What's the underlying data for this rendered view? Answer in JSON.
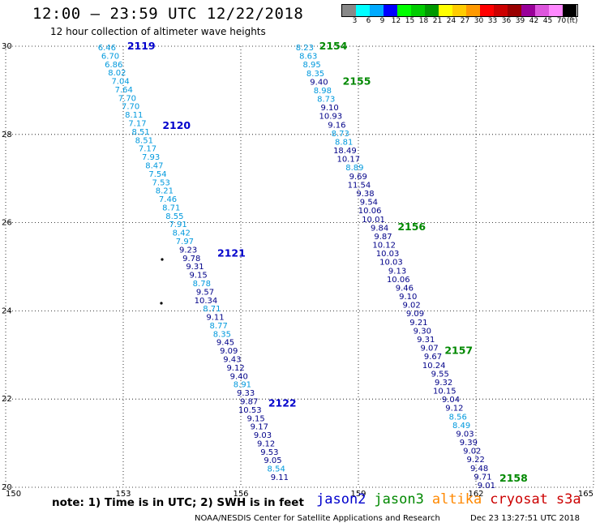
{
  "title": "12:00 – 23:59 UTC 12/22/2018",
  "subtitle": "12 hour collection of altimeter wave heights",
  "scale": {
    "labels": [
      "3",
      "6",
      "9",
      "12",
      "15",
      "18",
      "21",
      "24",
      "27",
      "30",
      "33",
      "36",
      "39",
      "42",
      "45",
      "70"
    ],
    "unit": "(ft)",
    "colors": [
      "#888888",
      "#00ffff",
      "#00aaff",
      "#0000ff",
      "#00ff00",
      "#00cc00",
      "#009900",
      "#ffff00",
      "#ffcc00",
      "#ff9900",
      "#ff0000",
      "#cc0000",
      "#990000",
      "#990099",
      "#dd55dd",
      "#ff88ff",
      "#000000"
    ]
  },
  "axes": {
    "x_ticks": [
      "150",
      "153",
      "156",
      "159",
      "162",
      "165"
    ],
    "y_ticks": [
      "20",
      "22",
      "24",
      "26",
      "28",
      "30"
    ]
  },
  "colors": {
    "jason2": "#0000cc",
    "jason3": "#008800",
    "altika": "#ff8800",
    "cryosat": "#cc0000",
    "light": "#0099dd",
    "dark": "#000088"
  },
  "passes": [
    {
      "label": "2119",
      "color": "jason2",
      "lon": 153.1,
      "lat": 30.0
    },
    {
      "label": "2120",
      "color": "jason2",
      "lon": 154.0,
      "lat": 28.2
    },
    {
      "label": "2121",
      "color": "jason2",
      "lon": 155.4,
      "lat": 25.3
    },
    {
      "label": "2122",
      "color": "jason2",
      "lon": 156.7,
      "lat": 21.9
    },
    {
      "label": "2154",
      "color": "jason3",
      "lon": 158.0,
      "lat": 30.0
    },
    {
      "label": "2155",
      "color": "jason3",
      "lon": 158.6,
      "lat": 29.2
    },
    {
      "label": "2156",
      "color": "jason3",
      "lon": 160.0,
      "lat": 25.9
    },
    {
      "label": "2157",
      "color": "jason3",
      "lon": 161.2,
      "lat": 23.1
    },
    {
      "label": "2158",
      "color": "jason3",
      "lon": 162.6,
      "lat": 20.2
    }
  ],
  "track_a": [
    "6.46",
    "6.70",
    "6.86",
    "8.02",
    "7.04",
    "7.64",
    "7.70",
    "7.70",
    "8.11",
    "7.17",
    "8.51",
    "8.51",
    "7.17",
    "7.93",
    "8.47",
    "7.54",
    "7.53",
    "8.21",
    "7.46",
    "8.71",
    "8.55",
    "7.91",
    "8.42",
    "7.97",
    "9.23",
    "9.78",
    "9.31",
    "9.15",
    "8.78",
    "9.57",
    "10.34",
    "8.71",
    "9.11",
    "8.77",
    "8.35",
    "9.45",
    "9.09",
    "9.43",
    "9.12",
    "9.40",
    "8.91",
    "9.33",
    "9.87",
    "10.53",
    "9.15",
    "9.17",
    "9.03",
    "9.12",
    "9.53",
    "9.05",
    "8.54",
    "9.11"
  ],
  "track_b": [
    "8.23",
    "8.63",
    "8.95",
    "8.35",
    "9.40",
    "8.98",
    "8.73",
    "9.10",
    "10.93",
    "9.16",
    "8.73",
    "8.81",
    "18.49",
    "10.17",
    "8.89",
    "9.69",
    "11.54",
    "9.38",
    "9.54",
    "10.06",
    "10.01",
    "9.84",
    "9.87",
    "10.12",
    "10.03",
    "10.03",
    "9.13",
    "10.06",
    "9.46",
    "9.10",
    "9.02",
    "9.09",
    "9.21",
    "9.30",
    "9.31",
    "9.07",
    "9.67",
    "10.24",
    "9.55",
    "9.32",
    "10.15",
    "9.04",
    "9.12",
    "8.56",
    "8.49",
    "9.03",
    "9.39",
    "9.02",
    "9.22",
    "9.48",
    "9.71",
    "9.01"
  ],
  "note": "note: 1) Time is in UTC; 2) SWH is in feet",
  "legend": [
    {
      "label": "jason2",
      "color": "#0000cc"
    },
    {
      "label": "jason3",
      "color": "#008800"
    },
    {
      "label": "altika",
      "color": "#ff8800"
    },
    {
      "label": "cryosat",
      "color": "#cc0000"
    },
    {
      "label": "s3a",
      "color": "#cc0000"
    }
  ],
  "credit": "NOAA/NESDIS Center for Satellite Applications and Research",
  "timestamp": "Dec 23 13:27:51 UTC 2018"
}
